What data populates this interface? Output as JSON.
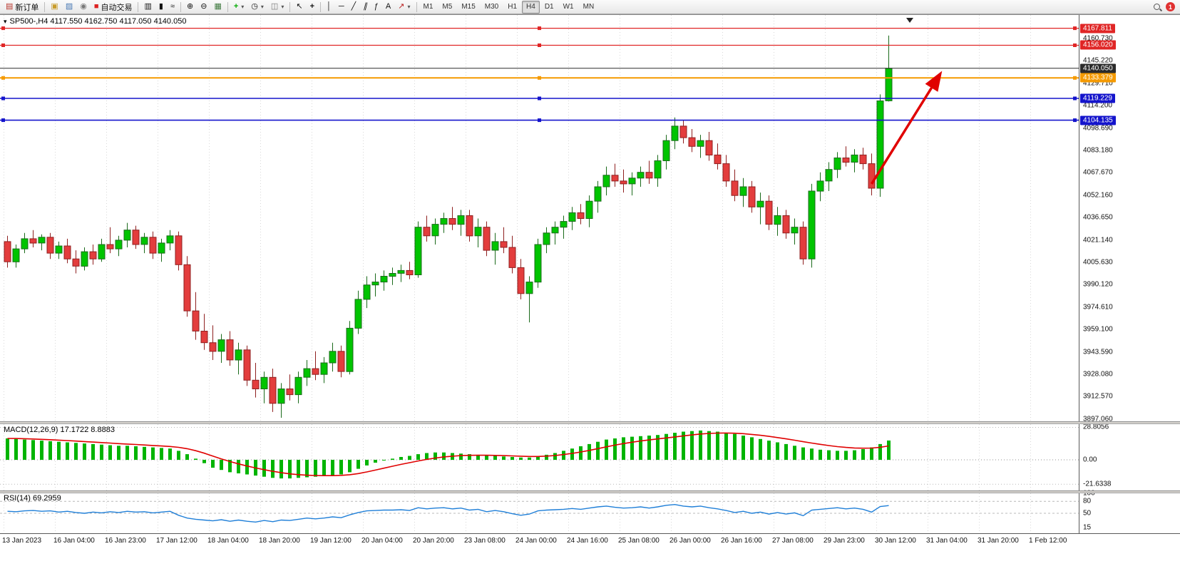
{
  "toolbar": {
    "new_order": "新订单",
    "auto_trading": "自动交易",
    "timeframes": [
      "M1",
      "M5",
      "M15",
      "M30",
      "H1",
      "H4",
      "D1",
      "W1",
      "MN"
    ],
    "active_timeframe": "H4",
    "notification_count": "1"
  },
  "chart": {
    "header": "SP500-,H4 4117.550 4162.750 4117.050 4140.050",
    "symbol": "SP500-",
    "period": "H4",
    "ohlc": {
      "open": "4117.550",
      "high": "4162.750",
      "low": "4117.050",
      "close": "4140.050"
    }
  },
  "price_axis": {
    "labels": [
      "4160.730",
      "4145.220",
      "4129.710",
      "4114.200",
      "4098.690",
      "4083.180",
      "4067.670",
      "4052.160",
      "4036.650",
      "4021.140",
      "4005.630",
      "3990.120",
      "3974.610",
      "3959.100",
      "3943.590",
      "3928.080",
      "3912.570",
      "3897.060"
    ]
  },
  "lines": [
    {
      "name": "resistance-line-1",
      "price": 4167.811,
      "label": "4167.811",
      "color": "#e02626",
      "width": 1.2,
      "handles": true
    },
    {
      "name": "resistance-line-2",
      "price": 4156.02,
      "label": "4156.020",
      "color": "#e02626",
      "width": 1.2,
      "handles": true
    },
    {
      "name": "current-price-line",
      "price": 4140.05,
      "label": "4140.050",
      "color": "#2b2b2b",
      "width": 1,
      "handles": false
    },
    {
      "name": "orange-level-line",
      "price": 4133.379,
      "label": "4133.379",
      "color": "#f59a00",
      "width": 2,
      "handles": true
    },
    {
      "name": "support-line-1",
      "price": 4119.229,
      "label": "4119.229",
      "color": "#1414cc",
      "width": 1.6,
      "handles": true
    },
    {
      "name": "support-line-2",
      "price": 4104.135,
      "label": "4104.135",
      "color": "#1414cc",
      "width": 1.6,
      "handles": true
    }
  ],
  "indicators": {
    "macd": {
      "label": "MACD(12,26,9) 17.1722 8.8883",
      "axis": [
        "28.8056",
        "0.00",
        "-21.6338"
      ],
      "max": 28.8056,
      "min": -21.6338
    },
    "rsi": {
      "label": "RSI(14) 69.2959",
      "axis": [
        "100",
        "80",
        "50",
        "15"
      ],
      "levels": [
        80,
        50
      ],
      "last": 69.2959
    }
  },
  "time_axis": {
    "labels": [
      "13 Jan 2023",
      "16 Jan 04:00",
      "16 Jan 23:00",
      "17 Jan 12:00",
      "18 Jan 04:00",
      "18 Jan 20:00",
      "19 Jan 12:00",
      "20 Jan 04:00",
      "20 Jan 20:00",
      "23 Jan 08:00",
      "24 Jan 00:00",
      "24 Jan 16:00",
      "25 Jan 08:00",
      "26 Jan 00:00",
      "26 Jan 16:00",
      "27 Jan 08:00",
      "29 Jan 23:00",
      "30 Jan 12:00",
      "31 Jan 04:00",
      "31 Jan 20:00",
      "1 Feb 12:00"
    ]
  },
  "colors": {
    "up": "#00c400",
    "up_stroke": "#1b6b1b",
    "down": "#e33d3d",
    "down_stroke": "#8f2020",
    "grid": "#d8d8d8",
    "macd_bar": "#00b400",
    "macd_signal": "#e00000",
    "rsi_line": "#1f7fd8",
    "arrow": "#e00000",
    "axis_red": "#e02626",
    "axis_orange": "#f59a00",
    "axis_blue": "#1414cc",
    "axis_black": "#2b2b2b"
  },
  "chart_data": {
    "type": "candlestick",
    "symbol": "SP500-",
    "timeframe": "H4",
    "view_price_range": [
      3895,
      4177
    ],
    "candles": [
      [
        4020,
        4024,
        4002,
        4006
      ],
      [
        4006,
        4018,
        4002,
        4015
      ],
      [
        4015,
        4026,
        4012,
        4022
      ],
      [
        4022,
        4028,
        4016,
        4019
      ],
      [
        4019,
        4025,
        4014,
        4023
      ],
      [
        4023,
        4026,
        4008,
        4012
      ],
      [
        4012,
        4020,
        4008,
        4017
      ],
      [
        4017,
        4022,
        4005,
        4008
      ],
      [
        4008,
        4014,
        3998,
        4003
      ],
      [
        4003,
        4016,
        4000,
        4013
      ],
      [
        4013,
        4018,
        4004,
        4008
      ],
      [
        4008,
        4022,
        4006,
        4018
      ],
      [
        4018,
        4030,
        4012,
        4015
      ],
      [
        4015,
        4024,
        4010,
        4021
      ],
      [
        4021,
        4033,
        4016,
        4028
      ],
      [
        4028,
        4031,
        4015,
        4018
      ],
      [
        4018,
        4026,
        4012,
        4023
      ],
      [
        4023,
        4027,
        4008,
        4012
      ],
      [
        4012,
        4022,
        4006,
        4019
      ],
      [
        4019,
        4028,
        4014,
        4024
      ],
      [
        4024,
        4027,
        4000,
        4004
      ],
      [
        4004,
        4010,
        3968,
        3972
      ],
      [
        3972,
        3985,
        3952,
        3958
      ],
      [
        3958,
        3970,
        3945,
        3950
      ],
      [
        3950,
        3962,
        3938,
        3944
      ],
      [
        3944,
        3956,
        3936,
        3952
      ],
      [
        3952,
        3958,
        3934,
        3938
      ],
      [
        3938,
        3950,
        3928,
        3945
      ],
      [
        3945,
        3948,
        3920,
        3924
      ],
      [
        3924,
        3936,
        3912,
        3918
      ],
      [
        3918,
        3930,
        3908,
        3926
      ],
      [
        3926,
        3932,
        3902,
        3908
      ],
      [
        3908,
        3922,
        3898,
        3918
      ],
      [
        3918,
        3928,
        3910,
        3914
      ],
      [
        3914,
        3930,
        3908,
        3926
      ],
      [
        3926,
        3938,
        3920,
        3932
      ],
      [
        3932,
        3944,
        3924,
        3928
      ],
      [
        3928,
        3940,
        3922,
        3936
      ],
      [
        3936,
        3950,
        3930,
        3944
      ],
      [
        3944,
        3948,
        3926,
        3930
      ],
      [
        3930,
        3965,
        3928,
        3960
      ],
      [
        3960,
        3986,
        3956,
        3980
      ],
      [
        3980,
        3996,
        3974,
        3990
      ],
      [
        3990,
        3998,
        3982,
        3992
      ],
      [
        3992,
        4000,
        3986,
        3996
      ],
      [
        3996,
        4002,
        3990,
        3998
      ],
      [
        3998,
        4004,
        3992,
        4000
      ],
      [
        4000,
        4006,
        3994,
        3997
      ],
      [
        3997,
        4034,
        3995,
        4030
      ],
      [
        4030,
        4038,
        4020,
        4024
      ],
      [
        4024,
        4036,
        4018,
        4032
      ],
      [
        4032,
        4040,
        4026,
        4036
      ],
      [
        4036,
        4044,
        4028,
        4032
      ],
      [
        4032,
        4042,
        4024,
        4038
      ],
      [
        4038,
        4042,
        4020,
        4024
      ],
      [
        4024,
        4036,
        4016,
        4030
      ],
      [
        4030,
        4034,
        4010,
        4014
      ],
      [
        4014,
        4026,
        4004,
        4020
      ],
      [
        4020,
        4030,
        4012,
        4016
      ],
      [
        4016,
        4024,
        3998,
        4002
      ],
      [
        4002,
        4008,
        3980,
        3984
      ],
      [
        3984,
        3996,
        3964,
        3992
      ],
      [
        3992,
        4022,
        3988,
        4018
      ],
      [
        4018,
        4030,
        4012,
        4026
      ],
      [
        4026,
        4034,
        4018,
        4030
      ],
      [
        4030,
        4038,
        4022,
        4034
      ],
      [
        4034,
        4044,
        4028,
        4040
      ],
      [
        4040,
        4046,
        4032,
        4036
      ],
      [
        4036,
        4052,
        4030,
        4048
      ],
      [
        4048,
        4062,
        4040,
        4058
      ],
      [
        4058,
        4072,
        4052,
        4066
      ],
      [
        4066,
        4074,
        4058,
        4062
      ],
      [
        4062,
        4070,
        4054,
        4060
      ],
      [
        4060,
        4068,
        4052,
        4064
      ],
      [
        4064,
        4072,
        4058,
        4068
      ],
      [
        4068,
        4076,
        4060,
        4064
      ],
      [
        4064,
        4080,
        4058,
        4076
      ],
      [
        4076,
        4094,
        4070,
        4090
      ],
      [
        4090,
        4106,
        4084,
        4100
      ],
      [
        4100,
        4104,
        4088,
        4092
      ],
      [
        4092,
        4098,
        4082,
        4086
      ],
      [
        4086,
        4094,
        4078,
        4090
      ],
      [
        4090,
        4096,
        4076,
        4080
      ],
      [
        4080,
        4088,
        4070,
        4074
      ],
      [
        4074,
        4080,
        4058,
        4062
      ],
      [
        4062,
        4070,
        4048,
        4052
      ],
      [
        4052,
        4064,
        4044,
        4058
      ],
      [
        4058,
        4062,
        4040,
        4044
      ],
      [
        4044,
        4054,
        4032,
        4048
      ],
      [
        4048,
        4052,
        4028,
        4032
      ],
      [
        4032,
        4044,
        4024,
        4038
      ],
      [
        4038,
        4042,
        4022,
        4026
      ],
      [
        4026,
        4036,
        4018,
        4030
      ],
      [
        4030,
        4034,
        4004,
        4008
      ],
      [
        4008,
        4060,
        4002,
        4055
      ],
      [
        4055,
        4068,
        4048,
        4062
      ],
      [
        4062,
        4075,
        4055,
        4070
      ],
      [
        4070,
        4082,
        4064,
        4078
      ],
      [
        4078,
        4086,
        4072,
        4075
      ],
      [
        4075,
        4084,
        4068,
        4080
      ],
      [
        4080,
        4085,
        4070,
        4074
      ],
      [
        4074,
        4081,
        4052,
        4057
      ],
      [
        4057,
        4122,
        4051,
        4117.5
      ],
      [
        4117.55,
        4162.75,
        4117.05,
        4140.05
      ]
    ],
    "macd_histogram": [
      19,
      18.5,
      18,
      17.5,
      17,
      16.5,
      16,
      15.5,
      15,
      14.5,
      14,
      13.5,
      13,
      12.5,
      12.5,
      12,
      11.5,
      11,
      10.5,
      10,
      8,
      5,
      1,
      -3,
      -7,
      -9,
      -11,
      -12,
      -13,
      -14,
      -15,
      -16,
      -16.5,
      -16.5,
      -16,
      -15.5,
      -15,
      -14.5,
      -14,
      -13,
      -11,
      -8,
      -5,
      -2.5,
      -0.5,
      1,
      2.5,
      3.5,
      5,
      6,
      6.5,
      6.5,
      6,
      5.5,
      5,
      4.5,
      4,
      3.5,
      3,
      2.5,
      2,
      2,
      3,
      4.5,
      6,
      8,
      10,
      12,
      14,
      16,
      18,
      19,
      20,
      20.5,
      21,
      21.5,
      22,
      23,
      24,
      25,
      25.5,
      26,
      25.5,
      25,
      24,
      23,
      21.5,
      20,
      18.5,
      17,
      15.5,
      14,
      12.5,
      11,
      10,
      9,
      8.5,
      8,
      8,
      8.5,
      9.5,
      11,
      14,
      17.17
    ],
    "rsi": [
      55,
      54,
      56,
      57,
      55,
      56,
      53,
      55,
      52,
      50,
      53,
      51,
      54,
      52,
      55,
      53,
      54,
      51,
      53,
      55,
      45,
      38,
      35,
      33,
      31,
      34,
      30,
      33,
      30,
      28,
      32,
      29,
      33,
      32,
      35,
      38,
      36,
      38,
      41,
      39,
      46,
      52,
      56,
      57,
      58,
      58,
      59,
      57,
      64,
      61,
      63,
      64,
      61,
      63,
      58,
      60,
      54,
      57,
      54,
      49,
      45,
      48,
      56,
      58,
      59,
      60,
      62,
      60,
      63,
      66,
      68,
      65,
      63,
      64,
      66,
      63,
      66,
      70,
      72,
      68,
      66,
      68,
      64,
      61,
      57,
      52,
      55,
      50,
      53,
      48,
      52,
      48,
      51,
      44,
      58,
      60,
      62,
      64,
      61,
      63,
      60,
      53,
      67,
      69.3
    ],
    "annotations": [
      {
        "type": "arrow",
        "color": "#e00000",
        "from": {
          "index": 101,
          "price": 4060
        },
        "to": {
          "index": 109,
          "price": 4136
        }
      }
    ]
  }
}
